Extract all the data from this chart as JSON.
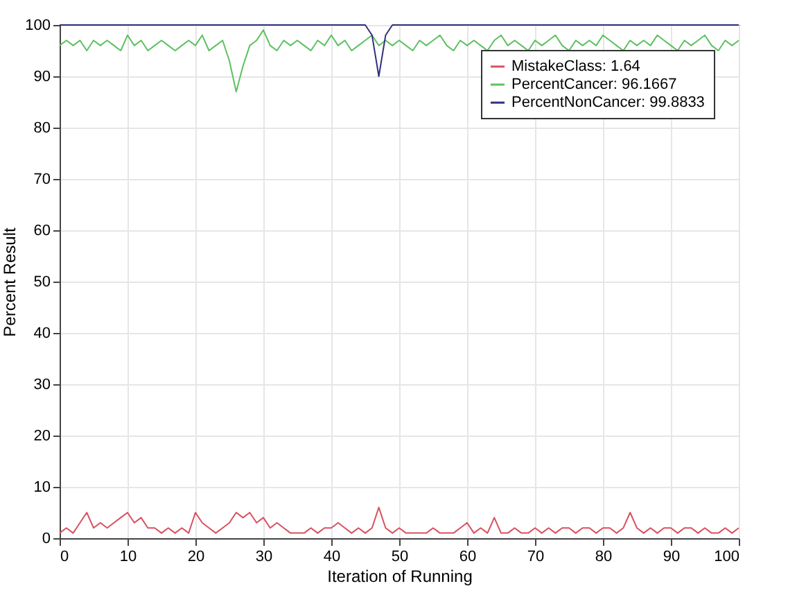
{
  "chart_data": {
    "type": "line",
    "xlabel": "Iteration of Running",
    "ylabel": "Percent Result",
    "x": [
      0,
      1,
      2,
      3,
      4,
      5,
      6,
      7,
      8,
      9,
      10,
      11,
      12,
      13,
      14,
      15,
      16,
      17,
      18,
      19,
      20,
      21,
      22,
      23,
      24,
      25,
      26,
      27,
      28,
      29,
      30,
      31,
      32,
      33,
      34,
      35,
      36,
      37,
      38,
      39,
      40,
      41,
      42,
      43,
      44,
      45,
      46,
      47,
      48,
      49,
      50,
      51,
      52,
      53,
      54,
      55,
      56,
      57,
      58,
      59,
      60,
      61,
      62,
      63,
      64,
      65,
      66,
      67,
      68,
      69,
      70,
      71,
      72,
      73,
      74,
      75,
      76,
      77,
      78,
      79,
      80,
      81,
      82,
      83,
      84,
      85,
      86,
      87,
      88,
      89,
      90,
      91,
      92,
      93,
      94,
      95,
      96,
      97,
      98,
      99,
      100
    ],
    "series": [
      {
        "name": "MistakeClass: 1.64",
        "color": "#d95060",
        "values": [
          1,
          2,
          1,
          3,
          5,
          2,
          3,
          2,
          3,
          4,
          5,
          3,
          4,
          2,
          2,
          1,
          2,
          1,
          2,
          1,
          5,
          3,
          2,
          1,
          2,
          3,
          5,
          4,
          5,
          3,
          4,
          2,
          3,
          2,
          1,
          1,
          1,
          2,
          1,
          2,
          2,
          3,
          2,
          1,
          2,
          1,
          2,
          6,
          2,
          1,
          2,
          1,
          1,
          1,
          1,
          2,
          1,
          1,
          1,
          2,
          3,
          1,
          2,
          1,
          4,
          1,
          1,
          2,
          1,
          1,
          2,
          1,
          2,
          1,
          2,
          2,
          1,
          2,
          2,
          1,
          2,
          2,
          1,
          2,
          5,
          2,
          1,
          2,
          1,
          2,
          2,
          1,
          2,
          2,
          1,
          2,
          1,
          1,
          2,
          1,
          2
        ]
      },
      {
        "name": "PercentCancer: 96.1667",
        "color": "#5cc060",
        "values": [
          96,
          97,
          96,
          97,
          95,
          97,
          96,
          97,
          96,
          95,
          98,
          96,
          97,
          95,
          96,
          97,
          96,
          95,
          96,
          97,
          96,
          98,
          95,
          96,
          97,
          93,
          87,
          92,
          96,
          97,
          99,
          96,
          95,
          97,
          96,
          97,
          96,
          95,
          97,
          96,
          98,
          96,
          97,
          95,
          96,
          97,
          98,
          96,
          97,
          96,
          97,
          96,
          95,
          97,
          96,
          97,
          98,
          96,
          95,
          97,
          96,
          97,
          96,
          95,
          97,
          98,
          96,
          97,
          96,
          95,
          97,
          96,
          97,
          98,
          96,
          95,
          97,
          96,
          97,
          96,
          98,
          97,
          96,
          95,
          97,
          96,
          97,
          96,
          98,
          97,
          96,
          95,
          97,
          96,
          97,
          98,
          96,
          95,
          97,
          96,
          97
        ]
      },
      {
        "name": "PercentNonCancer: 99.8833",
        "color": "#303080",
        "values": [
          100,
          100,
          100,
          100,
          100,
          100,
          100,
          100,
          100,
          100,
          100,
          100,
          100,
          100,
          100,
          100,
          100,
          100,
          100,
          100,
          100,
          100,
          100,
          100,
          100,
          100,
          100,
          100,
          100,
          100,
          100,
          100,
          100,
          100,
          100,
          100,
          100,
          100,
          100,
          100,
          100,
          100,
          100,
          100,
          100,
          100,
          98,
          90,
          98,
          100,
          100,
          100,
          100,
          100,
          100,
          100,
          100,
          100,
          100,
          100,
          100,
          100,
          100,
          100,
          100,
          100,
          100,
          100,
          100,
          100,
          100,
          100,
          100,
          100,
          100,
          100,
          100,
          100,
          100,
          100,
          100,
          100,
          100,
          100,
          100,
          100,
          100,
          100,
          100,
          100,
          100,
          100,
          100,
          100,
          100,
          100,
          100,
          100,
          100,
          100,
          100
        ]
      }
    ],
    "xlim": [
      0,
      100
    ],
    "xticks": [
      0,
      10,
      20,
      30,
      40,
      50,
      60,
      70,
      80,
      90,
      100
    ],
    "ylim": [
      0,
      100
    ],
    "yticks": [
      0,
      10,
      20,
      30,
      40,
      50,
      60,
      70,
      80,
      90,
      100
    ],
    "grid": true,
    "legend": "top right",
    "marker": "none",
    "line_style": "solid"
  }
}
